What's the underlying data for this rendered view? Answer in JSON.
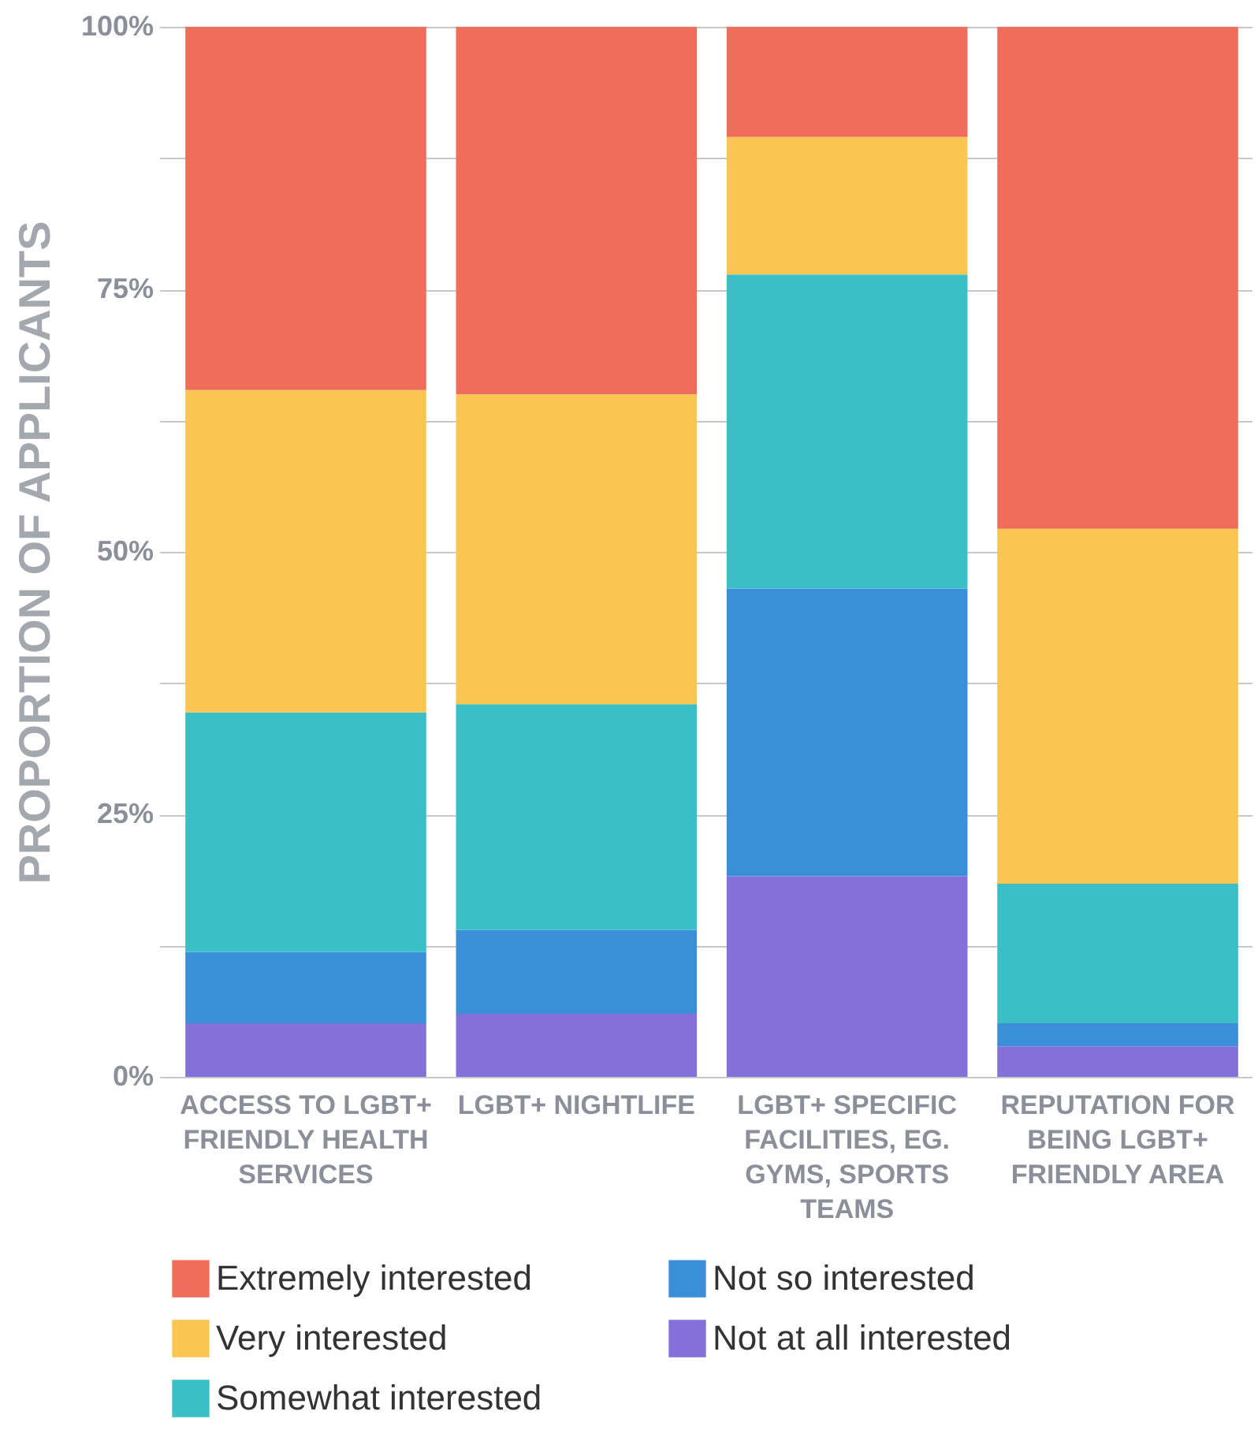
{
  "chart_data": {
    "type": "bar",
    "stacked": true,
    "ylabel": "PROPORTION OF APPLICANTS",
    "categories": [
      "ACCESS TO LGBT+ FRIENDLY HEALTH SERVICES",
      "LGBT+ NIGHTLIFE",
      "LGBT+ SPECIFIC FACILITIES, EG. GYMS, SPORTS TEAMS",
      "REPUTATION FOR BEING LGBT+ FRIENDLY AREA"
    ],
    "series": [
      {
        "name": "Not at all interested",
        "color": "#8470d9",
        "values": [
          5.1,
          6.0,
          19.1,
          2.9
        ]
      },
      {
        "name": "Not so interested",
        "color": "#3b8fd8",
        "values": [
          6.8,
          8.0,
          27.4,
          2.2
        ]
      },
      {
        "name": "Somewhat interested",
        "color": "#3bbfc6",
        "values": [
          22.8,
          21.5,
          29.9,
          13.3
        ]
      },
      {
        "name": "Very interested",
        "color": "#f9c553",
        "values": [
          30.7,
          29.5,
          13.1,
          33.8
        ]
      },
      {
        "name": "Extremely interested",
        "color": "#ee6e5b",
        "values": [
          34.6,
          35.0,
          10.5,
          47.8
        ]
      }
    ],
    "ylim": [
      0,
      100
    ],
    "yticks": [
      {
        "value": 0,
        "label": "0%"
      },
      {
        "value": 12.5,
        "label": null
      },
      {
        "value": 25,
        "label": "25%"
      },
      {
        "value": 37.5,
        "label": null
      },
      {
        "value": 50,
        "label": "50%"
      },
      {
        "value": 62.5,
        "label": null
      },
      {
        "value": 75,
        "label": "75%"
      },
      {
        "value": 87.5,
        "label": null
      },
      {
        "value": 100,
        "label": "100%"
      }
    ],
    "grid": true,
    "legend": "bottom"
  }
}
